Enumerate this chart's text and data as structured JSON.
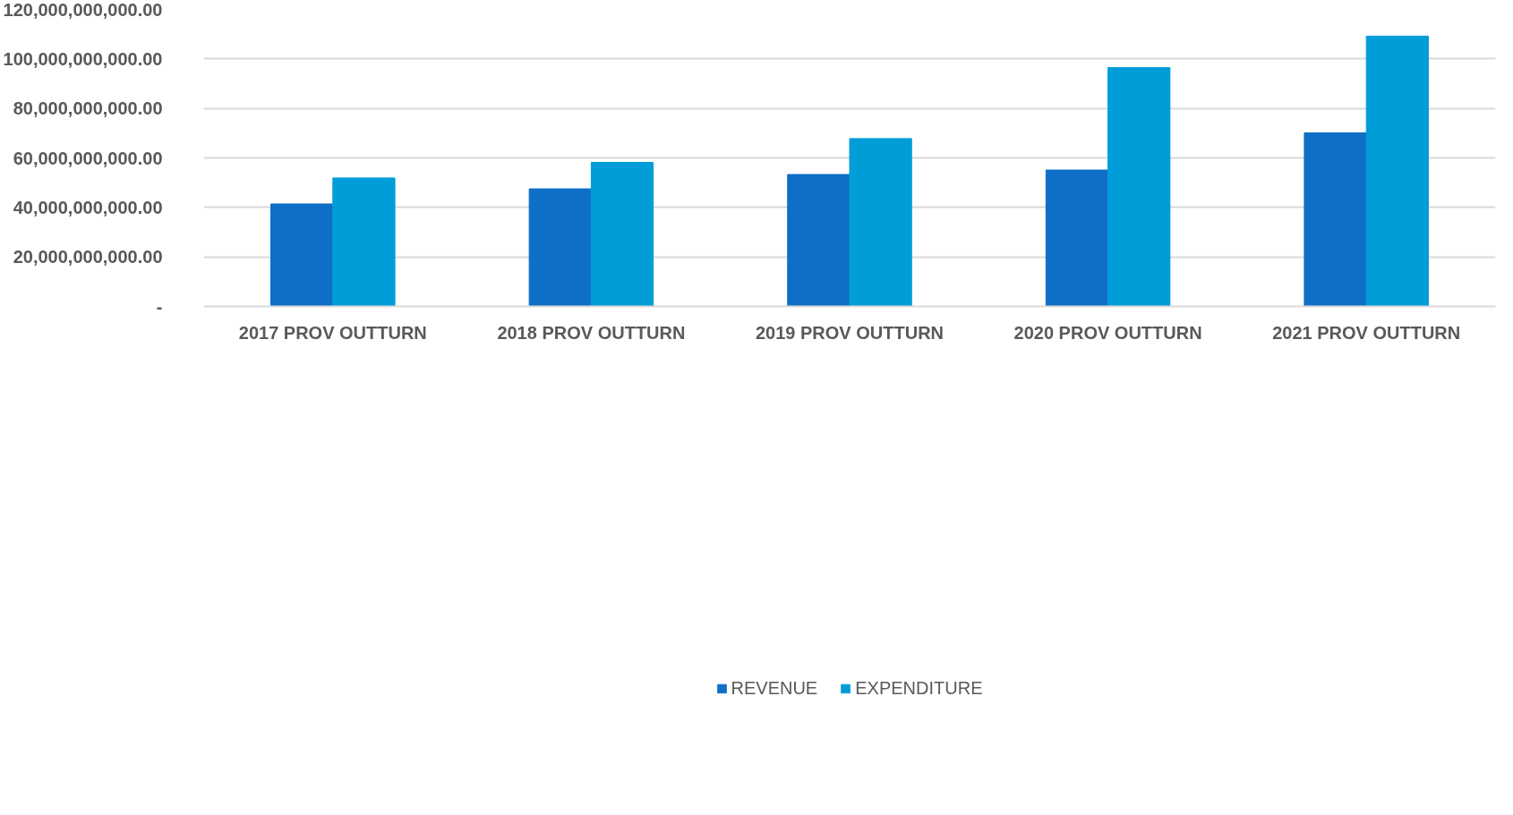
{
  "chart_data": {
    "type": "bar",
    "categories": [
      "2017 PROV OUTTURN",
      "2018 PROV OUTTURN",
      "2019 PROV OUTTURN",
      "2020 PROV OUTTURN",
      "2021 PROV OUTTURN"
    ],
    "series": [
      {
        "name": "REVENUE",
        "color": "#0f6fc6",
        "values": [
          41400000000,
          47500000000,
          53300000000,
          55100000000,
          70100000000
        ]
      },
      {
        "name": "EXPENDITURE",
        "color": "#009dd9",
        "values": [
          51900000000,
          58200000000,
          67800000000,
          96500000000,
          109200000000
        ]
      }
    ],
    "ylim": [
      0,
      120000000000
    ],
    "yticks": [
      {
        "value": 0,
        "label": "-"
      },
      {
        "value": 20000000000,
        "label": "20,000,000,000.00"
      },
      {
        "value": 40000000000,
        "label": "40,000,000,000.00"
      },
      {
        "value": 60000000000,
        "label": "60,000,000,000.00"
      },
      {
        "value": 80000000000,
        "label": "80,000,000,000.00"
      },
      {
        "value": 100000000000,
        "label": "100,000,000,000.00"
      },
      {
        "value": 120000000000,
        "label": "120,000,000,000.00"
      }
    ],
    "grid": "y",
    "legend": "bottom"
  }
}
